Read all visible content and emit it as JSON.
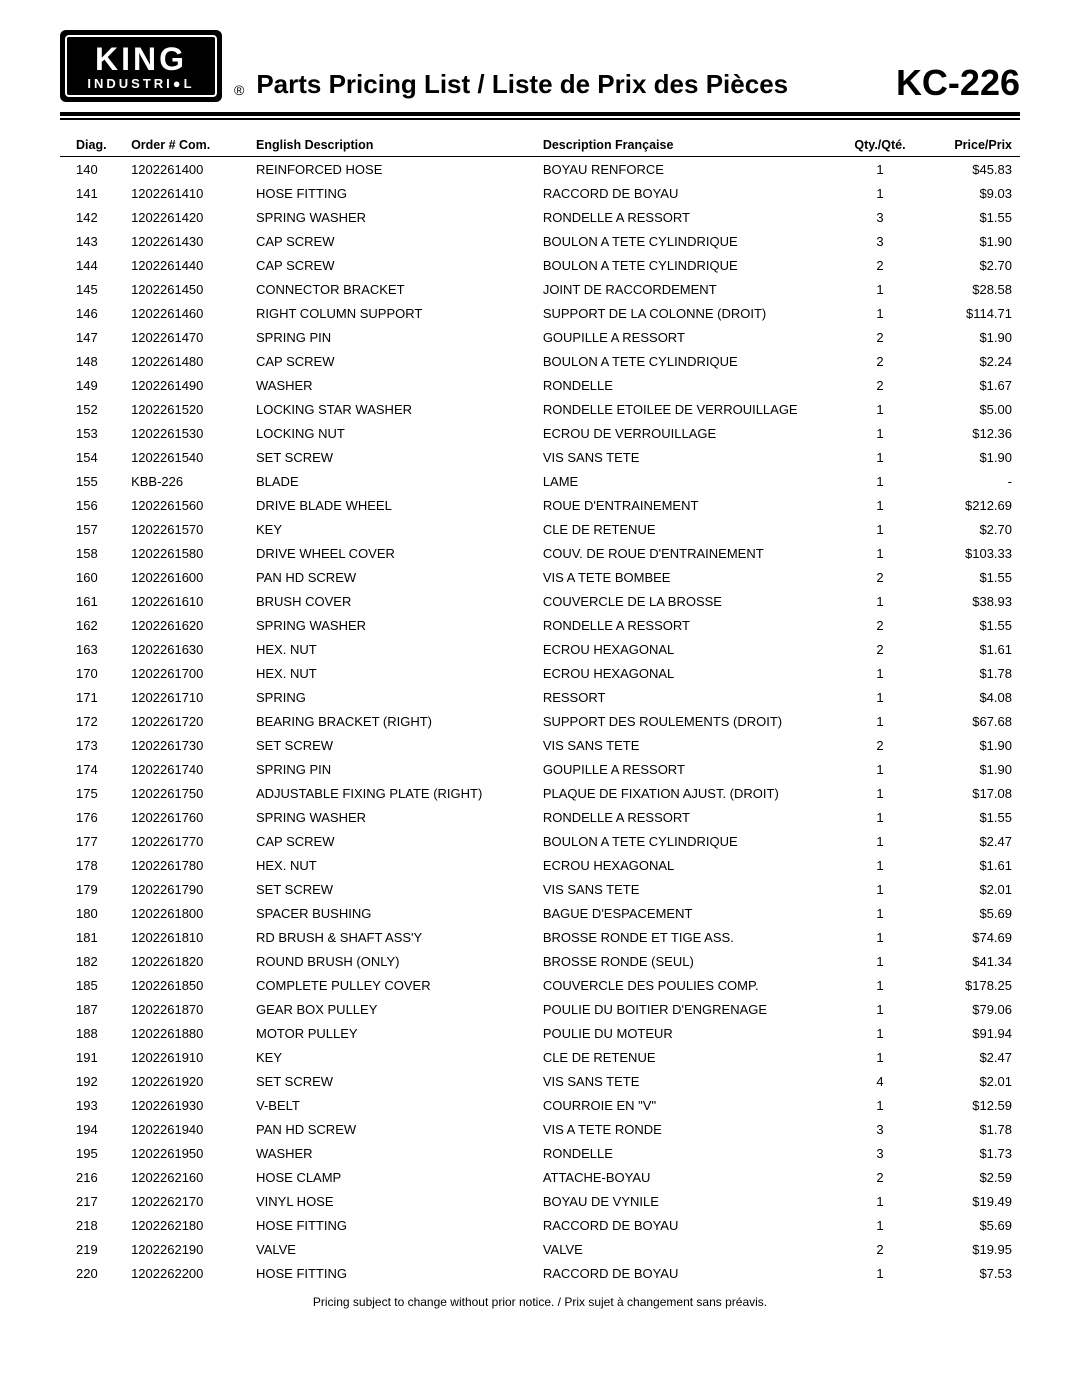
{
  "logo": {
    "line1": "KING",
    "line2": "INDUSTRI●L"
  },
  "registered": "®",
  "title": "Parts Pricing List / Liste de Prix des Pièces",
  "model": "KC-226",
  "columns": {
    "diag": "Diag.",
    "order": "Order # Com.",
    "eng": "English Description",
    "fr": "Description Française",
    "qty": "Qty./Qté.",
    "price": "Price/Prix"
  },
  "rows": [
    {
      "diag": "140",
      "order": "1202261400",
      "eng": "REINFORCED HOSE",
      "fr": "BOYAU RENFORCE",
      "qty": "1",
      "price": "$45.83"
    },
    {
      "diag": "141",
      "order": "1202261410",
      "eng": "HOSE FITTING",
      "fr": "RACCORD DE BOYAU",
      "qty": "1",
      "price": "$9.03"
    },
    {
      "diag": "142",
      "order": "1202261420",
      "eng": "SPRING WASHER",
      "fr": "RONDELLE A RESSORT",
      "qty": "3",
      "price": "$1.55"
    },
    {
      "diag": "143",
      "order": "1202261430",
      "eng": "CAP SCREW",
      "fr": "BOULON A TETE CYLINDRIQUE",
      "qty": "3",
      "price": "$1.90"
    },
    {
      "diag": "144",
      "order": "1202261440",
      "eng": "CAP SCREW",
      "fr": "BOULON A TETE CYLINDRIQUE",
      "qty": "2",
      "price": "$2.70"
    },
    {
      "diag": "145",
      "order": "1202261450",
      "eng": "CONNECTOR BRACKET",
      "fr": "JOINT DE RACCORDEMENT",
      "qty": "1",
      "price": "$28.58"
    },
    {
      "diag": "146",
      "order": "1202261460",
      "eng": "RIGHT COLUMN SUPPORT",
      "fr": "SUPPORT DE LA COLONNE (DROIT)",
      "qty": "1",
      "price": "$114.71"
    },
    {
      "diag": "147",
      "order": "1202261470",
      "eng": "SPRING PIN",
      "fr": "GOUPILLE A RESSORT",
      "qty": "2",
      "price": "$1.90"
    },
    {
      "diag": "148",
      "order": "1202261480",
      "eng": "CAP SCREW",
      "fr": "BOULON A TETE CYLINDRIQUE",
      "qty": "2",
      "price": "$2.24"
    },
    {
      "diag": "149",
      "order": "1202261490",
      "eng": "WASHER",
      "fr": "RONDELLE",
      "qty": "2",
      "price": "$1.67"
    },
    {
      "diag": "152",
      "order": "1202261520",
      "eng": "LOCKING STAR WASHER",
      "fr": "RONDELLE ETOILEE DE VERROUILLAGE",
      "qty": "1",
      "price": "$5.00"
    },
    {
      "diag": "153",
      "order": "1202261530",
      "eng": "LOCKING NUT",
      "fr": "ECROU DE VERROUILLAGE",
      "qty": "1",
      "price": "$12.36"
    },
    {
      "diag": "154",
      "order": "1202261540",
      "eng": "SET SCREW",
      "fr": "VIS SANS TETE",
      "qty": "1",
      "price": "$1.90"
    },
    {
      "diag": "155",
      "order": "KBB-226",
      "eng": "BLADE",
      "fr": "LAME",
      "qty": "1",
      "price": "-"
    },
    {
      "diag": "156",
      "order": "1202261560",
      "eng": "DRIVE BLADE WHEEL",
      "fr": "ROUE D'ENTRAINEMENT",
      "qty": "1",
      "price": "$212.69"
    },
    {
      "diag": "157",
      "order": "1202261570",
      "eng": "KEY",
      "fr": "CLE DE RETENUE",
      "qty": "1",
      "price": "$2.70"
    },
    {
      "diag": "158",
      "order": "1202261580",
      "eng": "DRIVE WHEEL COVER",
      "fr": "COUV. DE ROUE D'ENTRAINEMENT",
      "qty": "1",
      "price": "$103.33"
    },
    {
      "diag": "160",
      "order": "1202261600",
      "eng": "PAN HD SCREW",
      "fr": "VIS A TETE BOMBEE",
      "qty": "2",
      "price": "$1.55"
    },
    {
      "diag": "161",
      "order": "1202261610",
      "eng": "BRUSH COVER",
      "fr": "COUVERCLE DE LA BROSSE",
      "qty": "1",
      "price": "$38.93"
    },
    {
      "diag": "162",
      "order": "1202261620",
      "eng": "SPRING WASHER",
      "fr": "RONDELLE A RESSORT",
      "qty": "2",
      "price": "$1.55"
    },
    {
      "diag": "163",
      "order": "1202261630",
      "eng": "HEX. NUT",
      "fr": "ECROU HEXAGONAL",
      "qty": "2",
      "price": "$1.61"
    },
    {
      "diag": "170",
      "order": "1202261700",
      "eng": "HEX. NUT",
      "fr": "ECROU HEXAGONAL",
      "qty": "1",
      "price": "$1.78"
    },
    {
      "diag": "171",
      "order": "1202261710",
      "eng": "SPRING",
      "fr": "RESSORT",
      "qty": "1",
      "price": "$4.08"
    },
    {
      "diag": "172",
      "order": "1202261720",
      "eng": "BEARING BRACKET (RIGHT)",
      "fr": "SUPPORT DES ROULEMENTS (DROIT)",
      "qty": "1",
      "price": "$67.68"
    },
    {
      "diag": "173",
      "order": "1202261730",
      "eng": "SET SCREW",
      "fr": "VIS SANS TETE",
      "qty": "2",
      "price": "$1.90"
    },
    {
      "diag": "174",
      "order": "1202261740",
      "eng": "SPRING PIN",
      "fr": "GOUPILLE A RESSORT",
      "qty": "1",
      "price": "$1.90"
    },
    {
      "diag": "175",
      "order": "1202261750",
      "eng": "ADJUSTABLE FIXING PLATE (RIGHT)",
      "fr": "PLAQUE DE FIXATION AJUST. (DROIT)",
      "qty": "1",
      "price": "$17.08"
    },
    {
      "diag": "176",
      "order": "1202261760",
      "eng": "SPRING WASHER",
      "fr": "RONDELLE A RESSORT",
      "qty": "1",
      "price": "$1.55"
    },
    {
      "diag": "177",
      "order": "1202261770",
      "eng": "CAP SCREW",
      "fr": "BOULON A TETE CYLINDRIQUE",
      "qty": "1",
      "price": "$2.47"
    },
    {
      "diag": "178",
      "order": "1202261780",
      "eng": "HEX. NUT",
      "fr": "ECROU HEXAGONAL",
      "qty": "1",
      "price": "$1.61"
    },
    {
      "diag": "179",
      "order": "1202261790",
      "eng": "SET SCREW",
      "fr": "VIS SANS TETE",
      "qty": "1",
      "price": "$2.01"
    },
    {
      "diag": "180",
      "order": "1202261800",
      "eng": "SPACER BUSHING",
      "fr": "BAGUE D'ESPACEMENT",
      "qty": "1",
      "price": "$5.69"
    },
    {
      "diag": "181",
      "order": "1202261810",
      "eng": "RD BRUSH & SHAFT ASS'Y",
      "fr": "BROSSE RONDE ET TIGE ASS.",
      "qty": "1",
      "price": "$74.69"
    },
    {
      "diag": "182",
      "order": "1202261820",
      "eng": "ROUND BRUSH (ONLY)",
      "fr": "BROSSE RONDE (SEUL)",
      "qty": "1",
      "price": "$41.34"
    },
    {
      "diag": "185",
      "order": "1202261850",
      "eng": "COMPLETE PULLEY COVER",
      "fr": "COUVERCLE DES POULIES COMP.",
      "qty": "1",
      "price": "$178.25"
    },
    {
      "diag": "187",
      "order": "1202261870",
      "eng": "GEAR BOX PULLEY",
      "fr": "POULIE DU BOITIER D'ENGRENAGE",
      "qty": "1",
      "price": "$79.06"
    },
    {
      "diag": "188",
      "order": "1202261880",
      "eng": "MOTOR PULLEY",
      "fr": "POULIE DU MOTEUR",
      "qty": "1",
      "price": "$91.94"
    },
    {
      "diag": "191",
      "order": "1202261910",
      "eng": "KEY",
      "fr": "CLE DE RETENUE",
      "qty": "1",
      "price": "$2.47"
    },
    {
      "diag": "192",
      "order": "1202261920",
      "eng": "SET SCREW",
      "fr": "VIS SANS TETE",
      "qty": "4",
      "price": "$2.01"
    },
    {
      "diag": "193",
      "order": "1202261930",
      "eng": "V-BELT",
      "fr": "COURROIE EN \"V\"",
      "qty": "1",
      "price": "$12.59"
    },
    {
      "diag": "194",
      "order": "1202261940",
      "eng": "PAN HD SCREW",
      "fr": "VIS A TETE RONDE",
      "qty": "3",
      "price": "$1.78"
    },
    {
      "diag": "195",
      "order": "1202261950",
      "eng": "WASHER",
      "fr": "RONDELLE",
      "qty": "3",
      "price": "$1.73"
    },
    {
      "diag": "216",
      "order": "1202262160",
      "eng": "HOSE CLAMP",
      "fr": "ATTACHE-BOYAU",
      "qty": "2",
      "price": "$2.59"
    },
    {
      "diag": "217",
      "order": "1202262170",
      "eng": "VINYL HOSE",
      "fr": "BOYAU DE VYNILE",
      "qty": "1",
      "price": "$19.49"
    },
    {
      "diag": "218",
      "order": "1202262180",
      "eng": "HOSE FITTING",
      "fr": "RACCORD DE BOYAU",
      "qty": "1",
      "price": "$5.69"
    },
    {
      "diag": "219",
      "order": "1202262190",
      "eng": "VALVE",
      "fr": "VALVE",
      "qty": "2",
      "price": "$19.95"
    },
    {
      "diag": "220",
      "order": "1202262200",
      "eng": "HOSE FITTING",
      "fr": "RACCORD DE BOYAU",
      "qty": "1",
      "price": "$7.53"
    }
  ],
  "footer": "Pricing subject to change without prior notice. / Prix sujet à changement sans préavis."
}
